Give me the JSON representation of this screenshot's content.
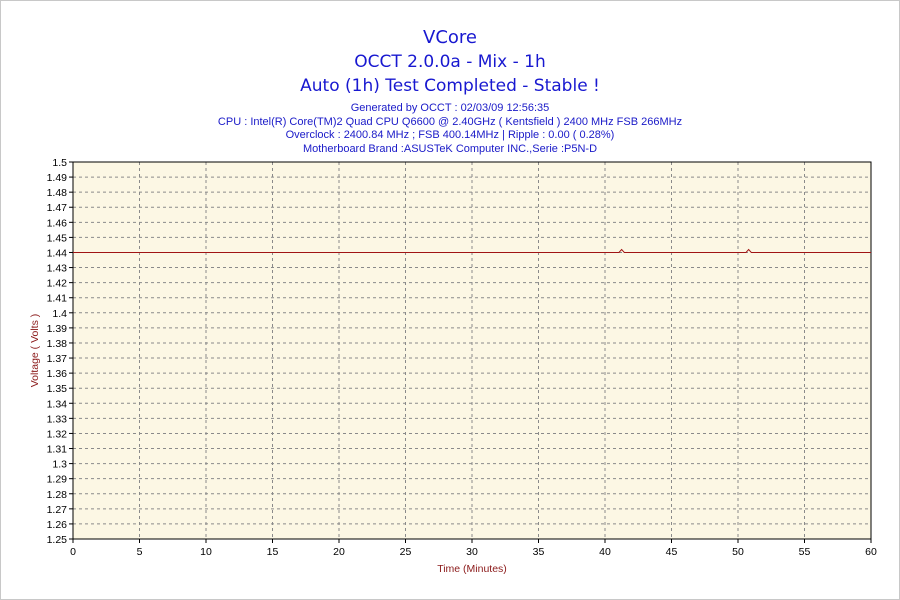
{
  "header": {
    "title": "VCore",
    "subtitle": "OCCT 2.0.0a - Mix - 1h",
    "status": "Auto (1h) Test Completed - Stable !"
  },
  "info_lines": [
    "Generated by OCCT : 02/03/09 12:56:35",
    "CPU : Intel(R) Core(TM)2 Quad CPU Q6600 @ 2.40GHz ( Kentsfield ) 2400 MHz FSB 266MHz",
    "Overclock : 2400.84 MHz ; FSB 400.14MHz | Ripple : 0.00 ( 0.28%)",
    "Motherboard Brand :ASUSTeK Computer INC.,Serie :P5N-D"
  ],
  "colors": {
    "title": "#1818d0",
    "plot_bg": "#fcf7e4",
    "grid": "#8a8a8a",
    "line": "#a01414",
    "axis_label": "#8b1a1a"
  },
  "chart_data": {
    "type": "line",
    "xlabel": "Time (Minutes)",
    "ylabel": "Voltage ( Volts )",
    "xlim": [
      0,
      60
    ],
    "ylim": [
      1.25,
      1.5
    ],
    "x_ticks": [
      0,
      5,
      10,
      15,
      20,
      25,
      30,
      35,
      40,
      45,
      50,
      55,
      60
    ],
    "y_ticks": [
      1.25,
      1.26,
      1.27,
      1.28,
      1.29,
      1.3,
      1.31,
      1.32,
      1.33,
      1.34,
      1.35,
      1.36,
      1.37,
      1.38,
      1.39,
      1.4,
      1.41,
      1.42,
      1.43,
      1.44,
      1.45,
      1.46,
      1.47,
      1.48,
      1.49,
      1.5
    ],
    "grid": true,
    "series": [
      {
        "x": [
          0,
          41.05,
          41.25,
          41.45,
          50.6,
          50.8,
          51.0,
          60
        ],
        "y": [
          1.44,
          1.44,
          1.442,
          1.44,
          1.44,
          1.442,
          1.44,
          1.44
        ]
      }
    ]
  }
}
